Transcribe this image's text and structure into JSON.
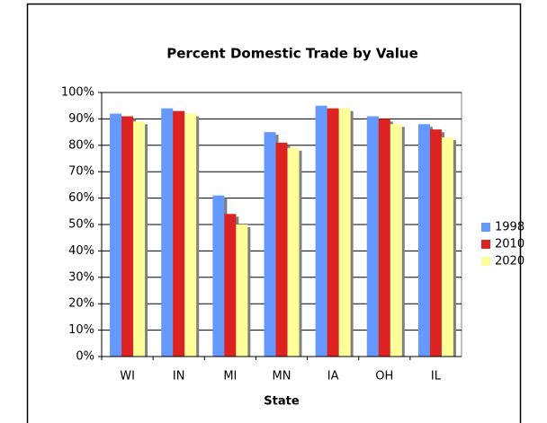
{
  "chart_data": {
    "type": "bar",
    "title": "Percent Domestic Trade by Value",
    "x_label": "State",
    "categories": [
      "WI",
      "IN",
      "MI",
      "MN",
      "IA",
      "OH",
      "IL"
    ],
    "series": [
      {
        "name": "1998",
        "color": "#6699ff",
        "values": [
          92,
          94,
          61,
          85,
          95,
          91,
          88
        ]
      },
      {
        "name": "2010",
        "color": "#dd2222",
        "values": [
          91,
          93,
          54,
          81,
          94,
          90,
          86
        ]
      },
      {
        "name": "2020",
        "color": "#ffff99",
        "values": [
          89,
          92,
          50,
          79,
          94,
          88,
          83
        ]
      }
    ],
    "ylim": [
      0,
      100
    ],
    "yticks": [
      {
        "value": 0,
        "label": "0%"
      },
      {
        "value": 10,
        "label": "10%"
      },
      {
        "value": 20,
        "label": "20%"
      },
      {
        "value": 30,
        "label": "30%"
      },
      {
        "value": 40,
        "label": "40%"
      },
      {
        "value": 50,
        "label": "50%"
      },
      {
        "value": 60,
        "label": "60%"
      },
      {
        "value": 70,
        "label": "70%"
      },
      {
        "value": 80,
        "label": "80%"
      },
      {
        "value": 90,
        "label": "90%"
      },
      {
        "value": 100,
        "label": "100%"
      }
    ],
    "grid": true,
    "legend": "right"
  }
}
